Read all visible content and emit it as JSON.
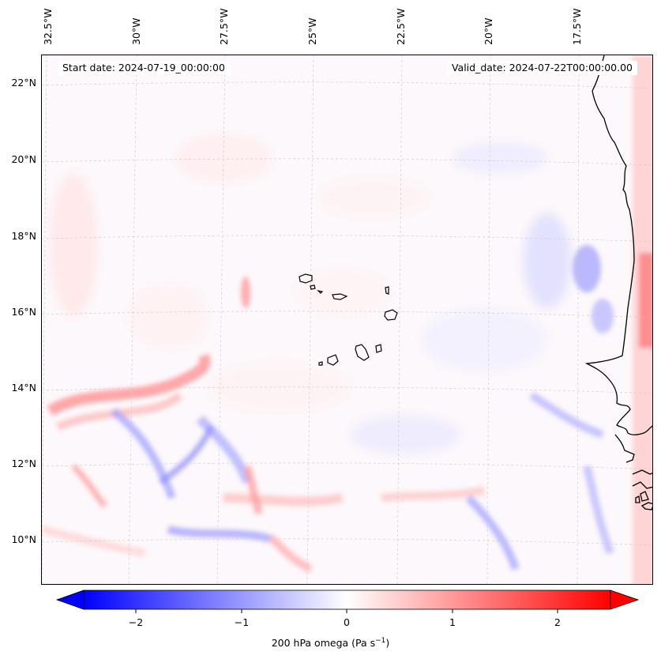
{
  "map": {
    "start_date_label": "Start date: 2024-07-19_00:00:00",
    "valid_date_label": "Valid_date: 2024-07-22T00:00:00.00",
    "longitude_ticks": [
      "32.5°W",
      "30°W",
      "27.5°W",
      "25°W",
      "22.5°W",
      "20°W",
      "17.5°W"
    ],
    "latitude_ticks": [
      "22°N",
      "20°N",
      "18°N",
      "16°N",
      "14°N",
      "12°N",
      "10°N"
    ],
    "gridlines": true,
    "coastlines": true,
    "features": [
      "cabo-verde-islands",
      "west-africa-coastline"
    ]
  },
  "colorbar": {
    "label_main": "200 hPa omega (Pa s",
    "label_exp": "−1",
    "label_end": ")",
    "tick_labels": [
      "−2",
      "−1",
      "0",
      "1",
      "2"
    ],
    "tick_values": [
      -2,
      -1,
      0,
      1,
      2
    ],
    "range": [
      -2.5,
      2.5
    ],
    "extend": "both",
    "colormap": "bwr",
    "colors": {
      "negative": "#0000ff",
      "zero": "#ffffff",
      "positive": "#ff0000"
    }
  }
}
